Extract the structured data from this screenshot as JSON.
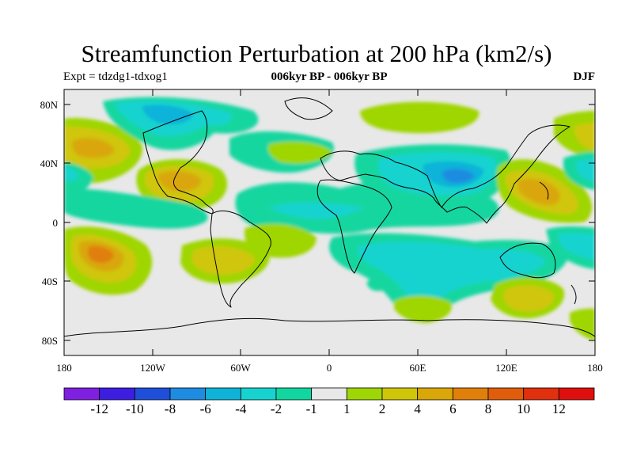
{
  "title": "Streamfunction Perturbation at 200 hPa (km2/s)",
  "experiment_label": "Expt = tdzdg1-tdxog1",
  "period_label": "006kyr BP - 006kyr BP",
  "season_label": "DJF",
  "axes": {
    "lat_ticks": [
      "80N",
      "40N",
      "0",
      "40S",
      "80S"
    ],
    "lon_ticks": [
      "180",
      "120W",
      "60W",
      "0",
      "60E",
      "120E",
      "180"
    ]
  },
  "colorbar": {
    "colors": [
      "#7f1fe0",
      "#3d1ee0",
      "#1f4fd8",
      "#1e8ce0",
      "#10b3d8",
      "#16d3cf",
      "#12d6a0",
      "#e8e8e8",
      "#9fd606",
      "#cfc60a",
      "#d9a709",
      "#e07f0a",
      "#e05d0b",
      "#e0300d",
      "#e00f0f"
    ],
    "labels": [
      "-12",
      "-10",
      "-8",
      "-6",
      "-4",
      "-2",
      "-1",
      "1",
      "2",
      "4",
      "6",
      "8",
      "10",
      "12"
    ]
  }
}
